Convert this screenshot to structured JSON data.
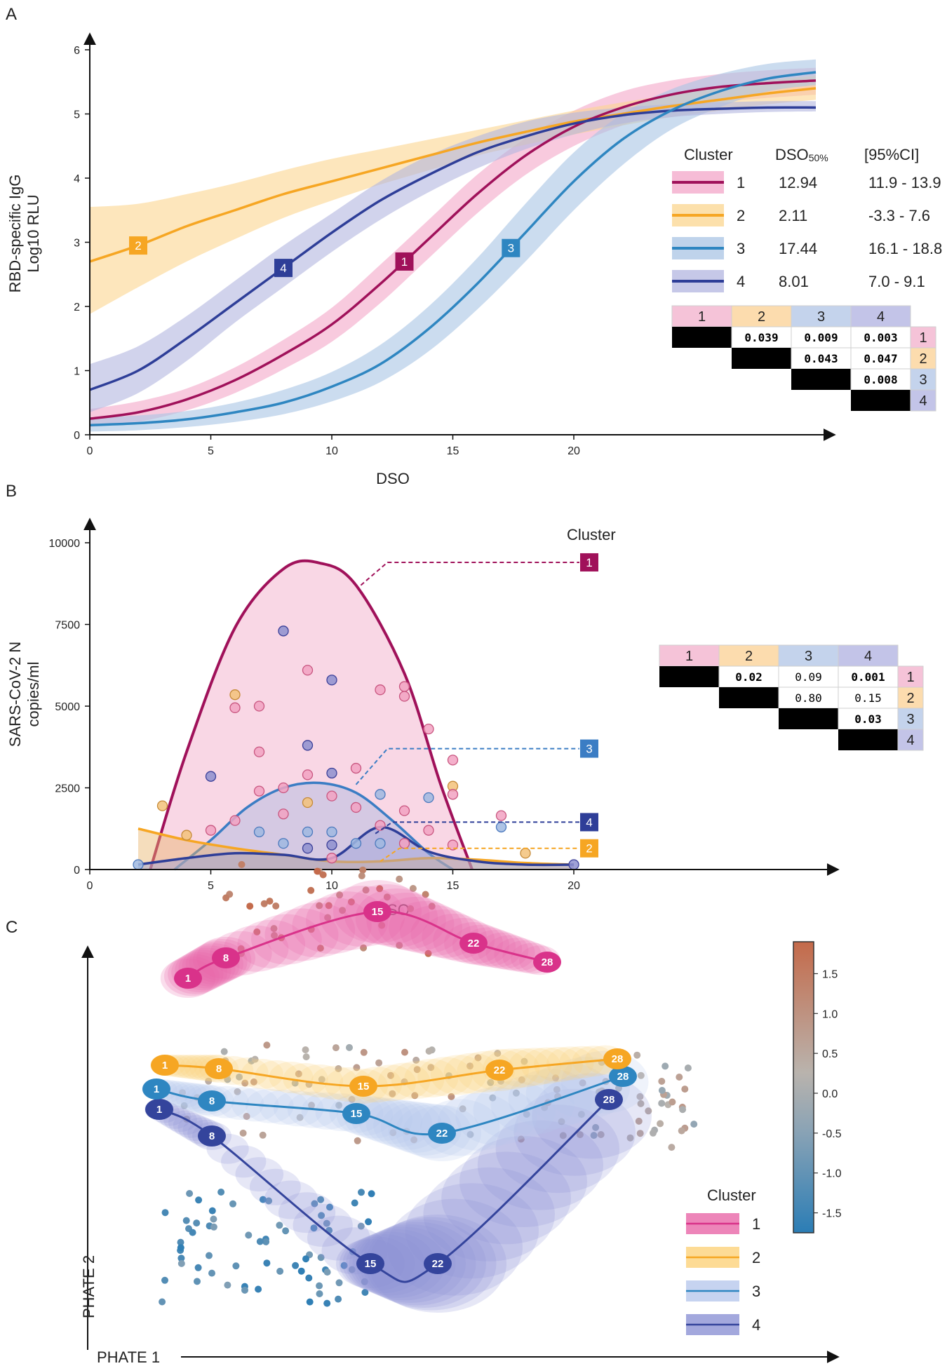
{
  "chart_data": [
    {
      "panel": "A",
      "type": "line",
      "xlabel": "DSO",
      "ylabel": "RBD-specific IgG\nLog10 RLU",
      "xlim": [
        0,
        30
      ],
      "ylim": [
        0,
        6
      ],
      "xticks": [
        0,
        5,
        10,
        15,
        20
      ],
      "yticks": [
        0,
        1,
        2,
        3,
        4,
        5,
        6
      ],
      "legend": {
        "position": "right",
        "headers": [
          "Cluster",
          "DSO50%",
          "[95%CI]"
        ],
        "rows": [
          {
            "cluster": "1",
            "dso50": "12.94",
            "ci": "11.9 - 13.9"
          },
          {
            "cluster": "2",
            "dso50": "2.11",
            "ci": "-3.3 - 7.6"
          },
          {
            "cluster": "3",
            "dso50": "17.44",
            "ci": "16.1 - 18.8"
          },
          {
            "cluster": "4",
            "dso50": "8.01",
            "ci": "7.0 - 9.1"
          }
        ]
      },
      "series": [
        {
          "name": "1",
          "color": "#a0115a",
          "band_color": "#f3a6c8",
          "x": [
            0,
            2,
            4,
            6,
            8,
            10,
            12,
            14,
            16,
            18,
            20,
            22,
            24,
            26,
            28,
            30
          ],
          "y": [
            0.25,
            0.35,
            0.55,
            0.85,
            1.25,
            1.72,
            2.35,
            3.05,
            3.75,
            4.35,
            4.8,
            5.1,
            5.3,
            5.42,
            5.48,
            5.52
          ],
          "lo": [
            0.12,
            0.2,
            0.38,
            0.65,
            1.02,
            1.45,
            2.05,
            2.75,
            3.45,
            4.05,
            4.5,
            4.82,
            5.05,
            5.18,
            5.25,
            5.3
          ],
          "hi": [
            0.4,
            0.52,
            0.72,
            1.05,
            1.48,
            1.98,
            2.65,
            3.35,
            4.05,
            4.62,
            5.05,
            5.35,
            5.52,
            5.62,
            5.68,
            5.72
          ],
          "label_at": 13
        },
        {
          "name": "2",
          "color": "#f6a623",
          "band_color": "#fbd58f",
          "x": [
            0,
            2,
            4,
            6,
            8,
            10,
            12,
            14,
            16,
            18,
            20,
            22,
            24,
            26,
            28,
            30
          ],
          "y": [
            2.7,
            2.95,
            3.25,
            3.5,
            3.75,
            3.95,
            4.15,
            4.35,
            4.55,
            4.72,
            4.88,
            5.0,
            5.12,
            5.22,
            5.32,
            5.4
          ],
          "lo": [
            1.88,
            2.3,
            2.7,
            3.05,
            3.38,
            3.65,
            3.9,
            4.12,
            4.35,
            4.52,
            4.68,
            4.82,
            4.95,
            5.05,
            5.15,
            5.22
          ],
          "hi": [
            3.55,
            3.6,
            3.75,
            3.92,
            4.12,
            4.3,
            4.45,
            4.6,
            4.75,
            4.9,
            5.05,
            5.18,
            5.3,
            5.42,
            5.52,
            5.6
          ],
          "label_at": 2
        },
        {
          "name": "3",
          "color": "#2e86c1",
          "band_color": "#a9c4e4",
          "x": [
            0,
            2,
            4,
            6,
            8,
            10,
            12,
            14,
            16,
            18,
            20,
            22,
            24,
            26,
            28,
            30
          ],
          "y": [
            0.15,
            0.18,
            0.24,
            0.35,
            0.5,
            0.75,
            1.1,
            1.65,
            2.35,
            3.15,
            3.95,
            4.6,
            5.05,
            5.35,
            5.55,
            5.65
          ],
          "lo": [
            0.05,
            0.07,
            0.12,
            0.2,
            0.32,
            0.52,
            0.82,
            1.3,
            1.95,
            2.7,
            3.5,
            4.2,
            4.75,
            5.1,
            5.35,
            5.45
          ],
          "hi": [
            0.27,
            0.3,
            0.37,
            0.5,
            0.7,
            0.98,
            1.4,
            2.0,
            2.75,
            3.6,
            4.4,
            5.0,
            5.38,
            5.62,
            5.78,
            5.85
          ],
          "label_at": 17.4
        },
        {
          "name": "4",
          "color": "#2e3e98",
          "band_color": "#b3b6e0",
          "x": [
            0,
            2,
            4,
            6,
            8,
            10,
            12,
            14,
            16,
            18,
            20,
            22,
            24,
            26,
            28,
            30
          ],
          "y": [
            0.7,
            1.0,
            1.5,
            2.05,
            2.6,
            3.15,
            3.65,
            4.05,
            4.4,
            4.65,
            4.85,
            4.98,
            5.05,
            5.08,
            5.1,
            5.1
          ],
          "lo": [
            0.35,
            0.65,
            1.15,
            1.75,
            2.3,
            2.85,
            3.35,
            3.78,
            4.15,
            4.45,
            4.68,
            4.85,
            4.95,
            5.0,
            5.03,
            5.04
          ],
          "hi": [
            1.1,
            1.38,
            1.85,
            2.4,
            2.95,
            3.45,
            3.95,
            4.35,
            4.65,
            4.88,
            5.02,
            5.1,
            5.15,
            5.18,
            5.2,
            5.2
          ],
          "label_at": 8
        }
      ],
      "pvalue_table": {
        "headers": [
          "1",
          "2",
          "3",
          "4"
        ],
        "rows": [
          {
            "label": "1",
            "cells": [
              "",
              "0.039",
              "0.009",
              "0.003"
            ],
            "bold": [
              false,
              true,
              true,
              true
            ]
          },
          {
            "label": "2",
            "cells": [
              "",
              "",
              "0.043",
              "0.047"
            ],
            "bold": [
              false,
              false,
              true,
              true
            ]
          },
          {
            "label": "3",
            "cells": [
              "",
              "",
              "",
              "0.008"
            ],
            "bold": [
              false,
              false,
              false,
              true
            ]
          },
          {
            "label": "4",
            "cells": [
              "",
              "",
              "",
              ""
            ],
            "bold": [
              false,
              false,
              false,
              false
            ]
          }
        ]
      }
    },
    {
      "panel": "B",
      "type": "area",
      "xlabel": "DSO",
      "ylabel": "SARS-CoV-2 N\ncopies/ml",
      "xlim": [
        0,
        30
      ],
      "ylim": [
        0,
        10000
      ],
      "xticks": [
        0,
        5,
        10,
        15,
        20
      ],
      "yticks": [
        0,
        2500,
        5000,
        7500,
        10000
      ],
      "legend_title": "Cluster",
      "series": [
        {
          "name": "1",
          "color": "#a0115a",
          "fill": "#f4b6d0",
          "x": [
            2.5,
            4,
            6,
            8,
            9.5,
            11,
            13,
            14.5,
            15.8
          ],
          "y": [
            0,
            3600,
            7400,
            9200,
            9380,
            8700,
            6000,
            2600,
            0
          ],
          "label_y": 9400
        },
        {
          "name": "2",
          "color": "#f6a623",
          "fill": "#e8b36a",
          "x": [
            2,
            4,
            6,
            8,
            10,
            12,
            14,
            16,
            18,
            20
          ],
          "y": [
            1250,
            900,
            650,
            450,
            250,
            250,
            350,
            300,
            200,
            150
          ],
          "label_y": 650
        },
        {
          "name": "3",
          "color": "#3b7dc4",
          "fill": "#a9b8e0",
          "x": [
            3.5,
            5,
            6.5,
            8,
            9.5,
            11,
            12.5,
            14,
            15
          ],
          "y": [
            0,
            900,
            1900,
            2500,
            2650,
            2350,
            1500,
            500,
            0
          ],
          "label_y": 3700
        },
        {
          "name": "4",
          "color": "#2e3e98",
          "fill": "#9aa0d8",
          "x": [
            2,
            4,
            6,
            8,
            10,
            12,
            14,
            16,
            18,
            20
          ],
          "y": [
            150,
            350,
            500,
            450,
            350,
            1300,
            550,
            250,
            150,
            150
          ],
          "label_y": 1450
        }
      ],
      "points": [
        {
          "x": 2,
          "y": 150,
          "c": 3
        },
        {
          "x": 3,
          "y": 1950,
          "c": 2
        },
        {
          "x": 4,
          "y": 1050,
          "c": 2
        },
        {
          "x": 5,
          "y": 2850,
          "c": 4
        },
        {
          "x": 5,
          "y": 1200,
          "c": 1
        },
        {
          "x": 6,
          "y": 5350,
          "c": 2
        },
        {
          "x": 6,
          "y": 4950,
          "c": 1
        },
        {
          "x": 6,
          "y": 1500,
          "c": 1
        },
        {
          "x": 7,
          "y": 5000,
          "c": 1
        },
        {
          "x": 7,
          "y": 3600,
          "c": 1
        },
        {
          "x": 7,
          "y": 2400,
          "c": 1
        },
        {
          "x": 7,
          "y": 1150,
          "c": 3
        },
        {
          "x": 8,
          "y": 7300,
          "c": 4
        },
        {
          "x": 8,
          "y": 2500,
          "c": 1
        },
        {
          "x": 8,
          "y": 1700,
          "c": 1
        },
        {
          "x": 8,
          "y": 800,
          "c": 3
        },
        {
          "x": 9,
          "y": 6100,
          "c": 1
        },
        {
          "x": 9,
          "y": 3800,
          "c": 4
        },
        {
          "x": 9,
          "y": 2900,
          "c": 1
        },
        {
          "x": 9,
          "y": 2050,
          "c": 2
        },
        {
          "x": 9,
          "y": 1150,
          "c": 3
        },
        {
          "x": 9,
          "y": 650,
          "c": 4
        },
        {
          "x": 10,
          "y": 5800,
          "c": 4
        },
        {
          "x": 10,
          "y": 2950,
          "c": 4
        },
        {
          "x": 10,
          "y": 2250,
          "c": 1
        },
        {
          "x": 10,
          "y": 1150,
          "c": 3
        },
        {
          "x": 10,
          "y": 750,
          "c": 4
        },
        {
          "x": 10,
          "y": 350,
          "c": 1
        },
        {
          "x": 11,
          "y": 3100,
          "c": 1
        },
        {
          "x": 11,
          "y": 1900,
          "c": 1
        },
        {
          "x": 11,
          "y": 800,
          "c": 3
        },
        {
          "x": 12,
          "y": 5500,
          "c": 1
        },
        {
          "x": 12,
          "y": 2300,
          "c": 3
        },
        {
          "x": 12,
          "y": 1350,
          "c": 1
        },
        {
          "x": 12,
          "y": 800,
          "c": 3
        },
        {
          "x": 13,
          "y": 5600,
          "c": 1
        },
        {
          "x": 13,
          "y": 5300,
          "c": 1
        },
        {
          "x": 13,
          "y": 1800,
          "c": 1
        },
        {
          "x": 13,
          "y": 800,
          "c": 1
        },
        {
          "x": 14,
          "y": 4300,
          "c": 1
        },
        {
          "x": 14,
          "y": 2200,
          "c": 3
        },
        {
          "x": 14,
          "y": 1200,
          "c": 1
        },
        {
          "x": 15,
          "y": 3350,
          "c": 1
        },
        {
          "x": 15,
          "y": 2550,
          "c": 2
        },
        {
          "x": 15,
          "y": 2300,
          "c": 1
        },
        {
          "x": 15,
          "y": 750,
          "c": 1
        },
        {
          "x": 17,
          "y": 1650,
          "c": 1
        },
        {
          "x": 17,
          "y": 1300,
          "c": 3
        },
        {
          "x": 18,
          "y": 500,
          "c": 2
        },
        {
          "x": 20,
          "y": 150,
          "c": 4
        }
      ],
      "pvalue_table": {
        "headers": [
          "1",
          "2",
          "3",
          "4"
        ],
        "rows": [
          {
            "label": "1",
            "cells": [
              "",
              "0.02",
              "0.09",
              "0.001"
            ],
            "bold": [
              false,
              true,
              false,
              true
            ]
          },
          {
            "label": "2",
            "cells": [
              "",
              "",
              "0.80",
              "0.15"
            ],
            "bold": [
              false,
              false,
              false,
              false
            ]
          },
          {
            "label": "3",
            "cells": [
              "",
              "",
              "",
              "0.03"
            ],
            "bold": [
              false,
              false,
              false,
              true
            ]
          },
          {
            "label": "4",
            "cells": [
              "",
              "",
              "",
              ""
            ],
            "bold": [
              false,
              false,
              false,
              false
            ]
          }
        ]
      }
    },
    {
      "panel": "C",
      "type": "scatter",
      "xlabel": "PHATE 1",
      "ylabel": "PHATE 2",
      "colorbar": {
        "ticks": [
          "1.5",
          "1.0",
          "0.5",
          "0.0",
          "-0.5",
          "-1.0",
          "-1.5"
        ],
        "min": -1.75,
        "max": 1.9,
        "colors": [
          "#2b7db5",
          "#8aa3b5",
          "#b9b3ad",
          "#c46a4a"
        ]
      },
      "legend_title": "Cluster",
      "trajectories": [
        {
          "name": "1",
          "color": "#d9328a",
          "band": "#e866a8",
          "nodes": [
            {
              "x": 0.08,
              "y": 0.36,
              "t": "1"
            },
            {
              "x": 0.18,
              "y": 0.52,
              "t": "8"
            },
            {
              "x": 0.48,
              "y": 0.88,
              "t": "15"
            },
            {
              "x": 0.74,
              "y": 0.62,
              "t": "22"
            },
            {
              "x": 0.94,
              "y": 0.46,
              "t": "28"
            }
          ]
        },
        {
          "name": "2",
          "color": "#f6a623",
          "band": "#fcd27a",
          "nodes": [
            {
              "x": 0.04,
              "y": 0.5,
              "t": "1"
            },
            {
              "x": 0.14,
              "y": 0.45,
              "t": "8"
            },
            {
              "x": 0.38,
              "y": 0.3,
              "t": "15"
            },
            {
              "x": 0.66,
              "y": 0.43,
              "t": "22"
            },
            {
              "x": 0.97,
              "y": 0.5,
              "t": "28"
            }
          ]
        },
        {
          "name": "3",
          "color": "#2e86c1",
          "band": "#b8c8ec",
          "nodes": [
            {
              "x": 0.03,
              "y": 0.5,
              "t": "1"
            },
            {
              "x": 0.13,
              "y": 0.45,
              "t": "8"
            },
            {
              "x": 0.38,
              "y": 0.55,
              "t": "15"
            },
            {
              "x": 0.56,
              "y": 0.6,
              "t": "22"
            },
            {
              "x": 0.97,
              "y": 0.92,
              "t": "28"
            }
          ]
        },
        {
          "name": "4",
          "color": "#34449c",
          "band": "#8c92d4",
          "nodes": [
            {
              "x": 0.03,
              "y": 0.86,
              "t": "1"
            },
            {
              "x": 0.12,
              "y": 0.72,
              "t": "8"
            },
            {
              "x": 0.41,
              "y": 0.14,
              "t": "15"
            },
            {
              "x": 0.55,
              "y": 0.14,
              "t": "22"
            },
            {
              "x": 0.96,
              "y": 0.74,
              "t": "28"
            }
          ]
        }
      ]
    }
  ],
  "panels": {
    "a": "A",
    "b": "B",
    "c": "C"
  },
  "b_legend_title": "Cluster",
  "c_legend_title": "Cluster"
}
